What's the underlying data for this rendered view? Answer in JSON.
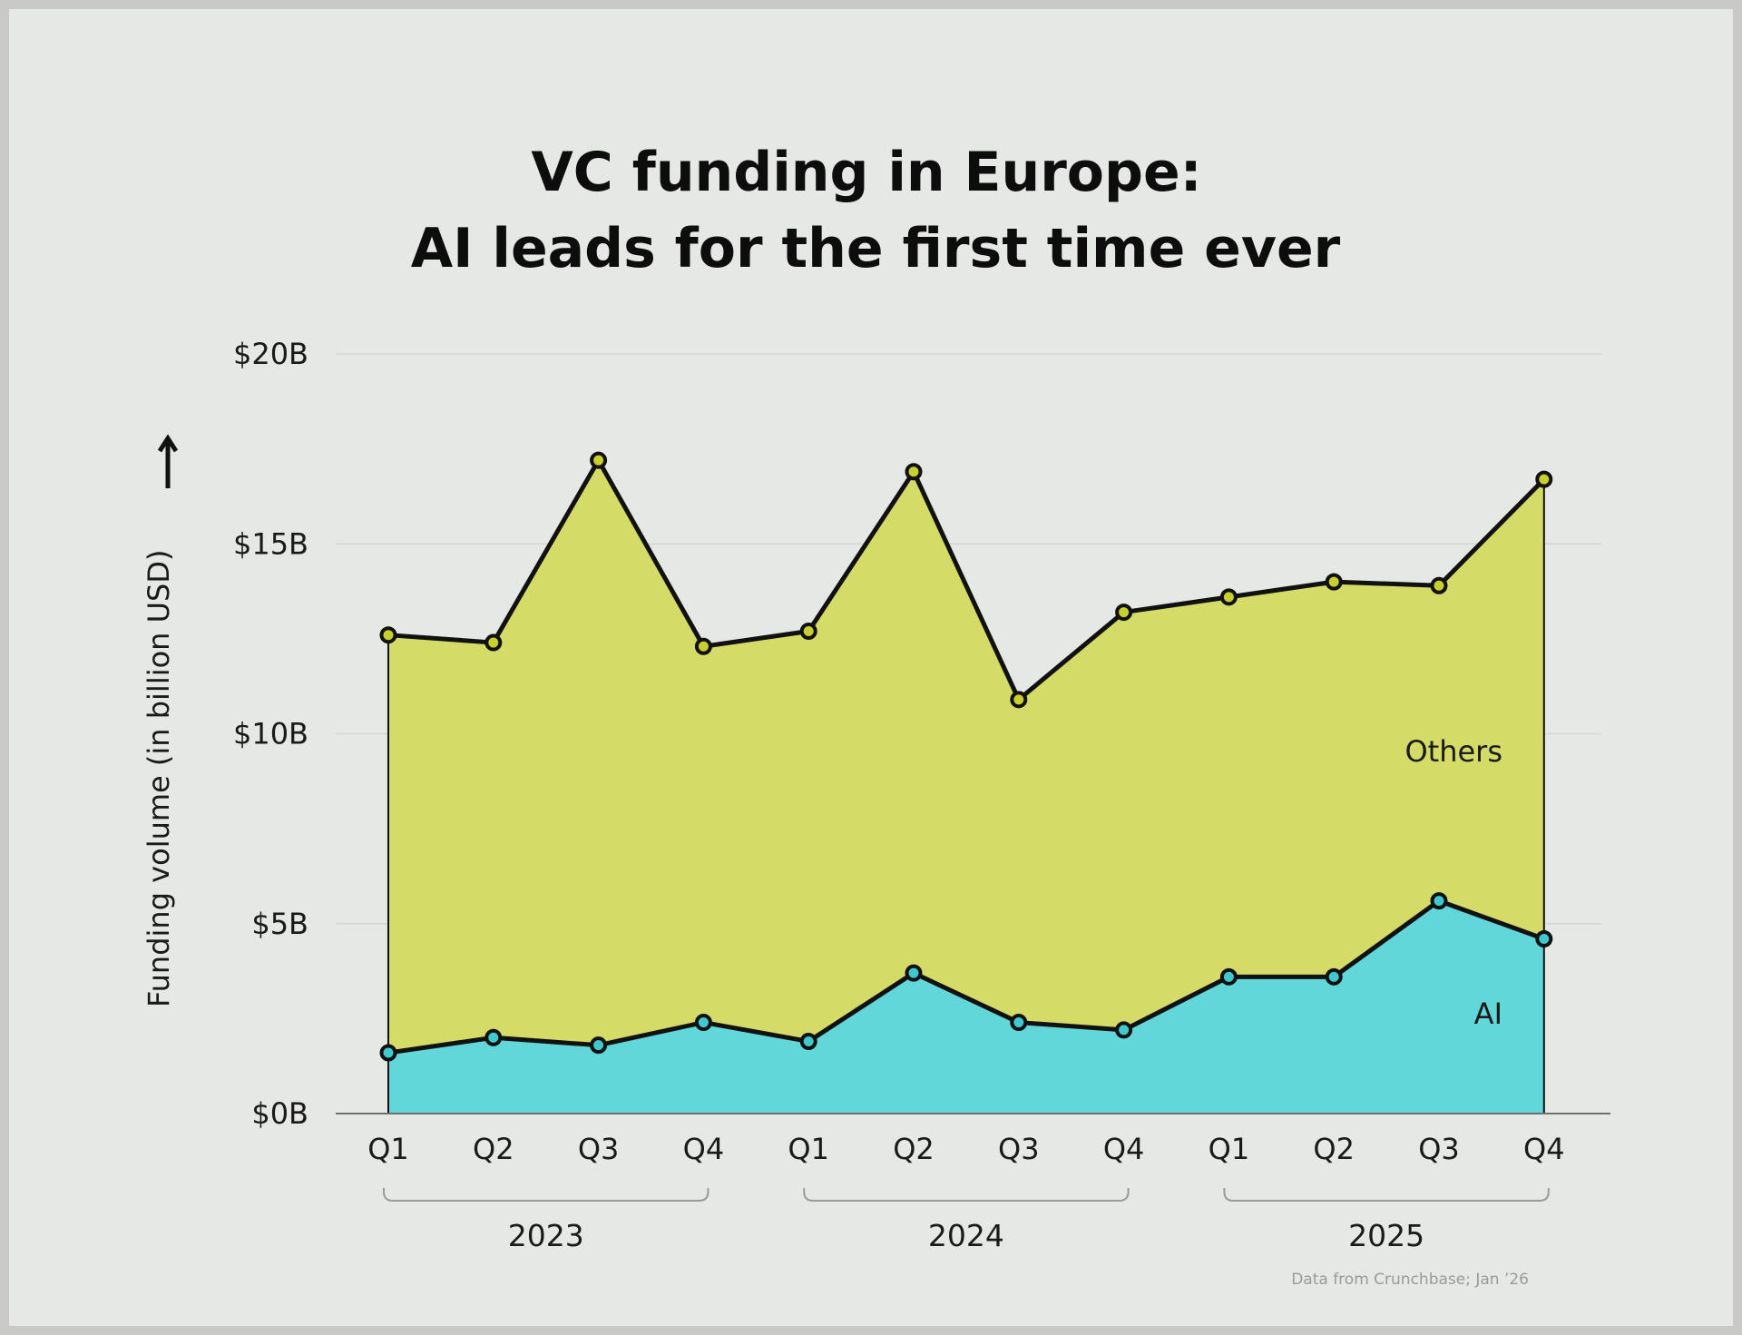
{
  "chart_data": {
    "type": "area",
    "stacked": true,
    "title_lines": [
      "VC funding in Europe:",
      "AI leads for the first time ever"
    ],
    "ylabel": "Funding volume (in billion USD)",
    "ylabel_arrow": "↑",
    "xlabel": "",
    "ylim": [
      0,
      20
    ],
    "y_ticks": [
      0,
      5,
      10,
      15,
      20
    ],
    "y_tick_labels": [
      "$0B",
      "$5B",
      "$10B",
      "$15B",
      "$20B"
    ],
    "grid": true,
    "categories": [
      "Q1",
      "Q2",
      "Q3",
      "Q4",
      "Q1",
      "Q2",
      "Q3",
      "Q4",
      "Q1",
      "Q2",
      "Q3",
      "Q4"
    ],
    "year_groups": [
      {
        "label": "2023",
        "start": 0,
        "end": 3
      },
      {
        "label": "2024",
        "start": 4,
        "end": 7
      },
      {
        "label": "2025",
        "start": 8,
        "end": 11
      }
    ],
    "series": [
      {
        "name": "AI",
        "color": "#62d7da",
        "values": [
          1.6,
          2.0,
          1.8,
          2.4,
          1.9,
          3.7,
          2.4,
          2.2,
          3.6,
          3.6,
          5.6,
          4.6
        ]
      },
      {
        "name": "Others",
        "color": "#d4db66",
        "totals": [
          12.6,
          12.4,
          17.2,
          12.3,
          12.7,
          16.9,
          10.9,
          13.2,
          13.6,
          14.0,
          13.9,
          16.7
        ]
      }
    ],
    "source": "Data from Crunchbase; Jan ’26"
  },
  "colors": {
    "background": "#e6e8e5",
    "frame": "#c9c9c7",
    "ai_fill": "#62d7da",
    "ai_marker": "#3fc9cf",
    "others_fill": "#d4db66",
    "others_marker": "#c9cf2e",
    "line": "#111111"
  }
}
